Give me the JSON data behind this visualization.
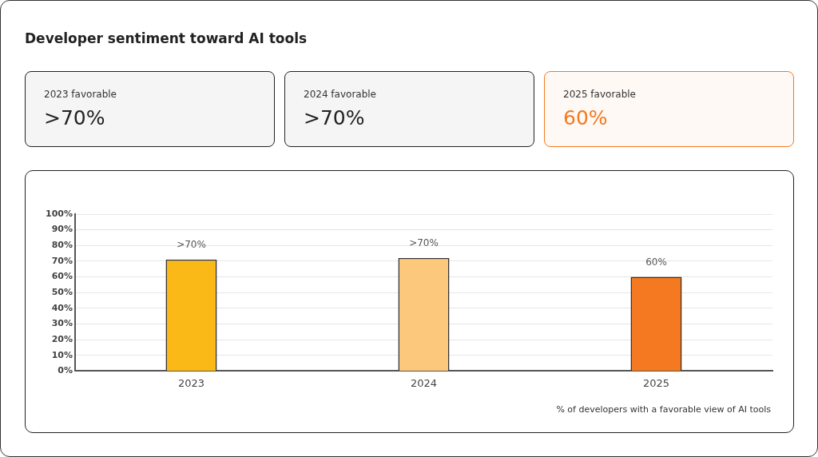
{
  "chart_data": [
    {
      "type": "other",
      "title": "Developer sentiment toward AI tools",
      "categories": [
        "2023 favorable",
        "2024 favorable",
        "2025 favorable"
      ],
      "annotations": [
        ">70%",
        ">70%",
        "60%"
      ],
      "colors": [
        "#222222",
        "#222222",
        "#f47920"
      ]
    },
    {
      "type": "bar",
      "categories": [
        "2023",
        "2024",
        "2025"
      ],
      "values": [
        71,
        72,
        60
      ],
      "value_labels": [
        ">70%",
        ">70%",
        "60%"
      ],
      "colors": [
        "#fbb917",
        "#fbc87c",
        "#f47920"
      ],
      "ylim": [
        0,
        100
      ],
      "yticks": [
        {
          "value": 0,
          "label": "0%"
        },
        {
          "value": 10,
          "label": "10%"
        },
        {
          "value": 20,
          "label": "20%"
        },
        {
          "value": 30,
          "label": "30%"
        },
        {
          "value": 40,
          "label": "40%"
        },
        {
          "value": 50,
          "label": "50%"
        },
        {
          "value": 60,
          "label": "60%"
        },
        {
          "value": 70,
          "label": "70%"
        },
        {
          "value": 80,
          "label": "80%"
        },
        {
          "value": 90,
          "label": "90%"
        },
        {
          "value": 100,
          "label": "100%"
        }
      ],
      "grid": "y",
      "legend": false,
      "annotations": [
        "% of developers with a favorable view of AI tools"
      ]
    }
  ]
}
